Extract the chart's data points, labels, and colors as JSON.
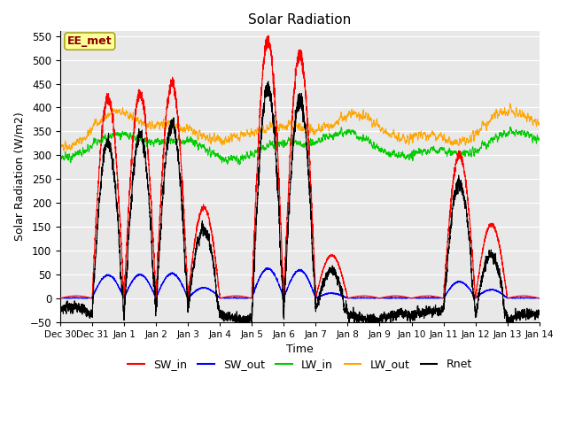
{
  "title": "Solar Radiation",
  "xlabel": "Time",
  "ylabel": "Solar Radiation (W/m2)",
  "ylim": [
    -50,
    560
  ],
  "yticks": [
    -50,
    0,
    50,
    100,
    150,
    200,
    250,
    300,
    350,
    400,
    450,
    500,
    550
  ],
  "annotation_text": "EE_met",
  "annotation_color": "#8B0000",
  "annotation_bg": "#FFFF99",
  "bg_color": "#E8E8E8",
  "line_colors": {
    "SW_in": "#FF0000",
    "SW_out": "#0000FF",
    "LW_in": "#00CC00",
    "LW_out": "#FFA500",
    "Rnet": "#000000"
  },
  "legend_labels": [
    "SW_in",
    "SW_out",
    "LW_in",
    "LW_out",
    "Rnet"
  ],
  "day_peaks": {
    "-1": 5,
    "0": 420,
    "1": 430,
    "2": 450,
    "3": 190,
    "4": 5,
    "5": 540,
    "6": 510,
    "7": 90,
    "8": 5,
    "9": 5,
    "10": 5,
    "11": 300,
    "12": 155,
    "13": 5
  },
  "figsize": [
    6.4,
    4.8
  ],
  "dpi": 100
}
